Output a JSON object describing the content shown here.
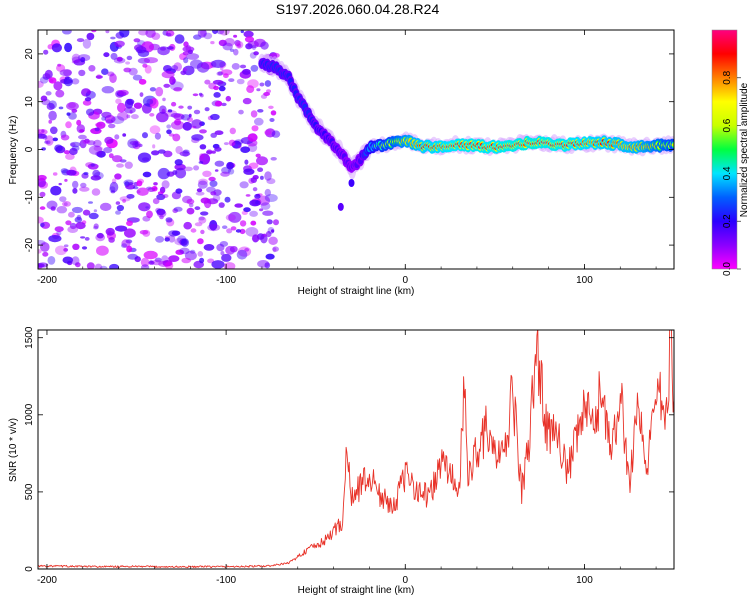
{
  "title": "S197.2026.060.04.28.R24",
  "chart_data": [
    {
      "type": "heatmap",
      "name": "spectrogram",
      "xlabel": "Height of straight line (km)",
      "ylabel": "Frequency (Hz)",
      "xlim": [
        -205,
        150
      ],
      "ylim": [
        -25,
        25
      ],
      "xticks": [
        -200,
        -100,
        0,
        100
      ],
      "yticks": [
        -20,
        -10,
        0,
        10,
        20
      ],
      "colorbar": {
        "label": "Normalized spectral amplitude",
        "range": [
          0,
          1
        ],
        "ticks": [
          0.0,
          0.2,
          0.4,
          0.6,
          0.8
        ],
        "stops": [
          "#ff00ff",
          "#8a00ff",
          "#2a00ff",
          "#0060ff",
          "#00e5ff",
          "#00ff40",
          "#c8ff00",
          "#ffff00",
          "#ff8000",
          "#ff0000",
          "#ff0080"
        ]
      },
      "noise_region": {
        "x": [
          -205,
          -72
        ],
        "y": [
          -25,
          25
        ],
        "amplitude": [
          0.02,
          0.2
        ]
      },
      "signal_track": [
        {
          "x": -80,
          "y": 18,
          "amp": 0.3
        },
        {
          "x": -72,
          "y": 17,
          "amp": 0.32
        },
        {
          "x": -65,
          "y": 15,
          "amp": 0.3
        },
        {
          "x": -60,
          "y": 11,
          "amp": 0.3
        },
        {
          "x": -55,
          "y": 8,
          "amp": 0.32
        },
        {
          "x": -50,
          "y": 5,
          "amp": 0.28
        },
        {
          "x": -45,
          "y": 3,
          "amp": 0.26
        },
        {
          "x": -40,
          "y": 1,
          "amp": 0.24
        },
        {
          "x": -35,
          "y": -1,
          "amp": 0.22
        },
        {
          "x": -30,
          "y": -4,
          "amp": 0.2
        },
        {
          "x": -25,
          "y": -2,
          "amp": 0.22
        },
        {
          "x": -20,
          "y": 0.5,
          "amp": 0.45
        },
        {
          "x": -10,
          "y": 1,
          "amp": 0.6
        },
        {
          "x": 0,
          "y": 2,
          "amp": 0.75
        },
        {
          "x": 10,
          "y": 0.5,
          "amp": 0.85
        },
        {
          "x": 30,
          "y": 1,
          "amp": 0.9
        },
        {
          "x": 50,
          "y": 0.5,
          "amp": 0.9
        },
        {
          "x": 70,
          "y": 1.5,
          "amp": 0.92
        },
        {
          "x": 90,
          "y": 1,
          "amp": 0.9
        },
        {
          "x": 110,
          "y": 1.5,
          "amp": 0.85
        },
        {
          "x": 130,
          "y": 0.5,
          "amp": 0.8
        },
        {
          "x": 150,
          "y": 1,
          "amp": 0.6
        }
      ],
      "outliers": [
        {
          "x": -36,
          "y": -12,
          "amp": 0.15
        },
        {
          "x": -30,
          "y": -7,
          "amp": 0.18
        }
      ]
    },
    {
      "type": "line",
      "name": "snr",
      "xlabel": "Height of straight line (km)",
      "ylabel": "SNR (10 * v/v)",
      "xlim": [
        -205,
        150
      ],
      "ylim": [
        0,
        1550
      ],
      "xticks": [
        -200,
        -100,
        0,
        100
      ],
      "yticks": [
        0,
        500,
        1000,
        1500
      ],
      "color": "#e83228",
      "series": [
        {
          "name": "SNR",
          "x": [
            -205,
            -190,
            -170,
            -150,
            -130,
            -110,
            -90,
            -75,
            -65,
            -60,
            -55,
            -50,
            -45,
            -40,
            -35,
            -33,
            -30,
            -25,
            -20,
            -15,
            -10,
            -5,
            0,
            5,
            10,
            15,
            20,
            25,
            30,
            33,
            35,
            40,
            45,
            50,
            55,
            60,
            65,
            70,
            73,
            75,
            80,
            85,
            90,
            95,
            100,
            105,
            110,
            115,
            120,
            125,
            130,
            135,
            140,
            145,
            148,
            150
          ],
          "y": [
            20,
            18,
            15,
            16,
            14,
            15,
            16,
            20,
            40,
            80,
            120,
            150,
            180,
            250,
            300,
            780,
            450,
            550,
            600,
            500,
            420,
            450,
            600,
            550,
            480,
            500,
            700,
            620,
            500,
            1150,
            600,
            780,
            900,
            750,
            700,
            1150,
            500,
            900,
            1500,
            1250,
            850,
            950,
            600,
            800,
            1050,
            900,
            1200,
            700,
            1150,
            550,
            1100,
            600,
            1250,
            900,
            1500,
            1100
          ]
        }
      ]
    }
  ]
}
